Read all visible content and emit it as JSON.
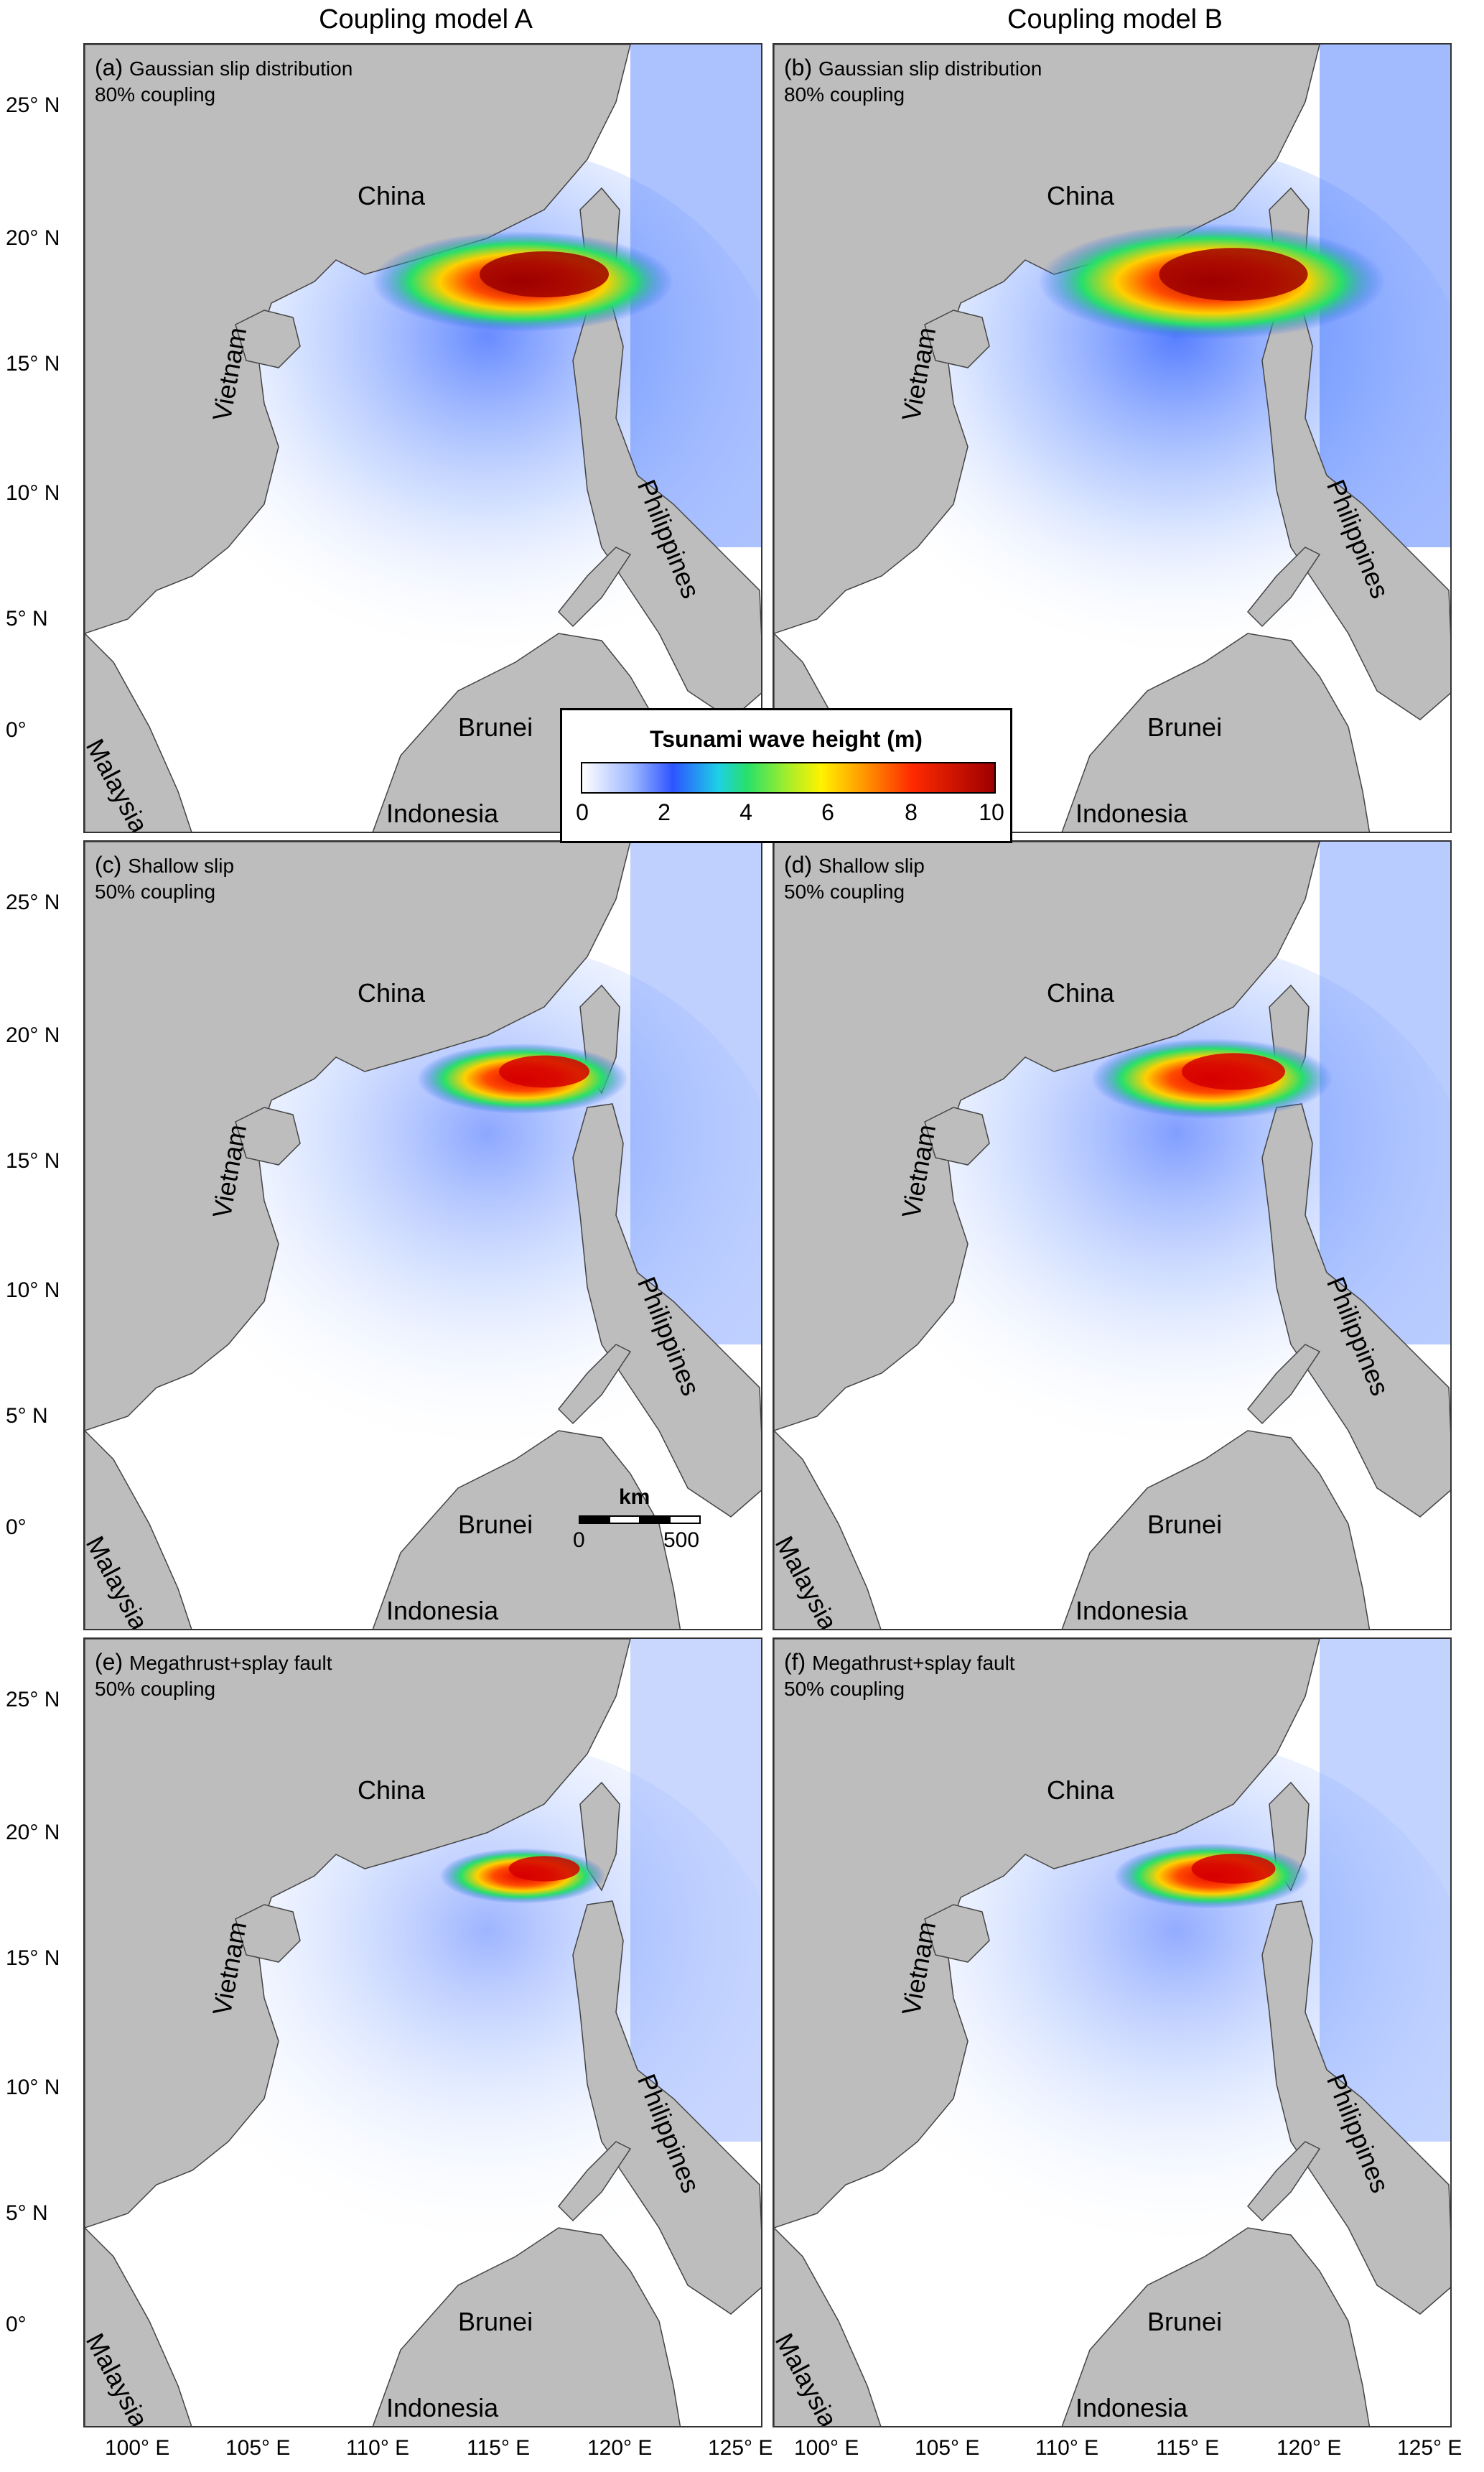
{
  "columns": [
    "Coupling model A",
    "Coupling model B"
  ],
  "panels": [
    {
      "id": "a",
      "label": "(a)",
      "scenario": "Gaussian slip distribution",
      "coupling": "80% coupling",
      "intensity": 1.0
    },
    {
      "id": "b",
      "label": "(b)",
      "scenario": "Gaussian slip distribution",
      "coupling": "80% coupling",
      "intensity": 1.15
    },
    {
      "id": "c",
      "label": "(c)",
      "scenario": "Shallow slip",
      "coupling": "50% coupling",
      "intensity": 0.7
    },
    {
      "id": "d",
      "label": "(d)",
      "scenario": "Shallow slip",
      "coupling": "50% coupling",
      "intensity": 0.8
    },
    {
      "id": "e",
      "label": "(e)",
      "scenario": "Megathrust+splay fault",
      "coupling": "50% coupling",
      "intensity": 0.55
    },
    {
      "id": "f",
      "label": "(f)",
      "scenario": "Megathrust+splay fault",
      "coupling": "50% coupling",
      "intensity": 0.65
    }
  ],
  "countries": {
    "china": "China",
    "vietnam": "Vietnam",
    "philippines": "Philippines",
    "malaysia": "Malaysia",
    "brunei": "Brunei",
    "indonesia": "Indonesia"
  },
  "y_ticks": [
    "25° N",
    "20° N",
    "15° N",
    "10° N",
    "5° N",
    "0°"
  ],
  "x_ticks": [
    "100° E",
    "105° E",
    "110° E",
    "115° E",
    "120° E",
    "125° E"
  ],
  "legend": {
    "title": "Tsunami wave height (m)",
    "ticks": [
      "0",
      "2",
      "4",
      "6",
      "8",
      "10"
    ],
    "colors": [
      "#ffffff",
      "#9fb8ff",
      "#2c54ff",
      "#1ecfe6",
      "#27e06a",
      "#fff200",
      "#ff9a00",
      "#ff2a00",
      "#9e0000"
    ]
  },
  "scalebar": {
    "title": "km",
    "start": "0",
    "end": "500"
  },
  "land_color": "#bdbdbd"
}
